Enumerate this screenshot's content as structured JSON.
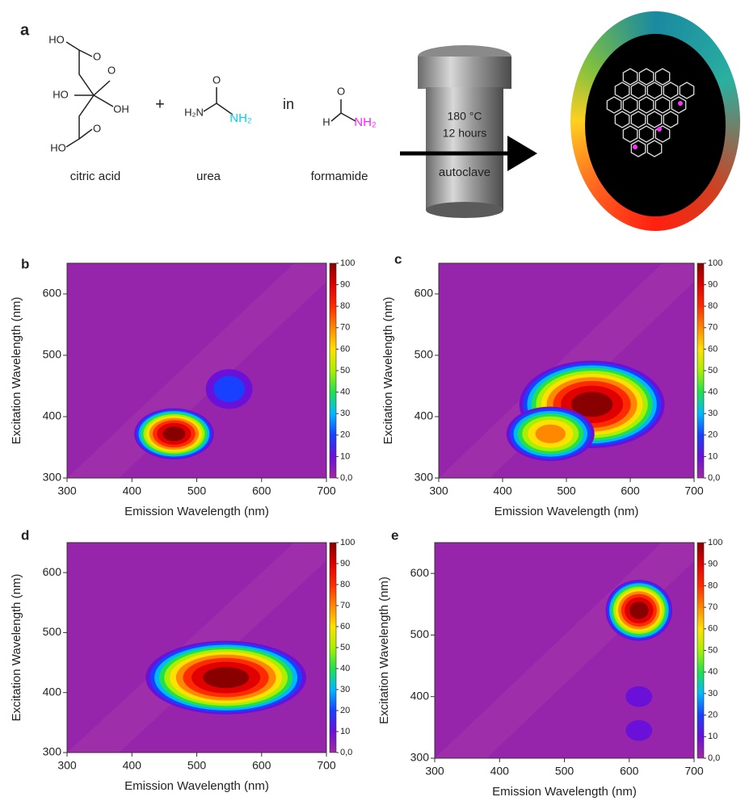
{
  "scheme": {
    "label": "a",
    "citric_acid": {
      "name": "citric acid",
      "atoms": [
        "HO",
        "O",
        "HO",
        "O",
        "OH",
        "HO",
        "O"
      ]
    },
    "plus": "+",
    "urea": {
      "name": "urea",
      "atoms": [
        "O",
        "H₂N",
        "NH₂"
      ]
    },
    "in": "in",
    "formamide": {
      "name": "formamide",
      "atoms": [
        "O",
        "H",
        "NH₂"
      ]
    },
    "conditions": [
      "180 °C",
      "12 hours"
    ],
    "vessel": "autoclave"
  },
  "panels": [
    {
      "label": "b",
      "xlabel": "Emission Wavelength (nm)",
      "ylabel": "Excitation Wavelength (nm)",
      "xlim": [
        300,
        700
      ],
      "ylim": [
        300,
        650
      ],
      "xticks": [
        300,
        400,
        500,
        600,
        700
      ],
      "yticks": [
        300,
        400,
        500,
        600
      ],
      "clim": [
        0,
        100
      ],
      "cticks": [
        {
          "value": 0,
          "label": "0,0"
        },
        10,
        20,
        30,
        40,
        50,
        60,
        70,
        80,
        90,
        100
      ],
      "peaks": [
        {
          "x": 465,
          "y": 372,
          "value": 100
        },
        {
          "x": 550,
          "y": 445,
          "value": 20
        }
      ]
    },
    {
      "label": "c",
      "xlabel": "Emission Wavelength (nm)",
      "ylabel": "Excitation Wavelength (nm)",
      "xlim": [
        300,
        700
      ],
      "ylim": [
        300,
        650
      ],
      "xticks": [
        300,
        400,
        500,
        600,
        700
      ],
      "yticks": [
        300,
        400,
        500,
        600
      ],
      "clim": [
        0,
        100
      ],
      "cticks": [
        {
          "value": 0,
          "label": "0,0"
        },
        10,
        20,
        30,
        40,
        50,
        60,
        70,
        80,
        90,
        100
      ],
      "peaks": [
        {
          "x": 540,
          "y": 420,
          "value": 100
        },
        {
          "x": 475,
          "y": 372,
          "value": 70
        }
      ]
    },
    {
      "label": "d",
      "xlabel": "Emission Wavelength (nm)",
      "ylabel": "Excitation Wavelength (nm)",
      "xlim": [
        300,
        700
      ],
      "ylim": [
        300,
        650
      ],
      "xticks": [
        300,
        400,
        500,
        600,
        700
      ],
      "yticks": [
        300,
        400,
        500,
        600
      ],
      "clim": [
        0,
        100
      ],
      "cticks": [
        {
          "value": 0,
          "label": "0,0"
        },
        10,
        20,
        30,
        40,
        50,
        60,
        70,
        80,
        90,
        100
      ],
      "peaks": [
        {
          "x": 545,
          "y": 425,
          "value": 100
        }
      ]
    },
    {
      "label": "e",
      "xlabel": "Emission Wavelength (nm)",
      "ylabel": "Excitation Wavelength (nm)",
      "xlim": [
        300,
        700
      ],
      "ylim": [
        300,
        650
      ],
      "xticks": [
        300,
        400,
        500,
        600,
        700
      ],
      "yticks": [
        300,
        400,
        500,
        600
      ],
      "clim": [
        0,
        100
      ],
      "cticks": [
        {
          "value": 0,
          "label": "0,0"
        },
        10,
        20,
        30,
        40,
        50,
        60,
        70,
        80,
        90,
        100
      ],
      "peaks": [
        {
          "x": 615,
          "y": 540,
          "value": 100
        },
        {
          "x": 615,
          "y": 400,
          "value": 15
        },
        {
          "x": 615,
          "y": 345,
          "value": 15
        }
      ]
    }
  ]
}
